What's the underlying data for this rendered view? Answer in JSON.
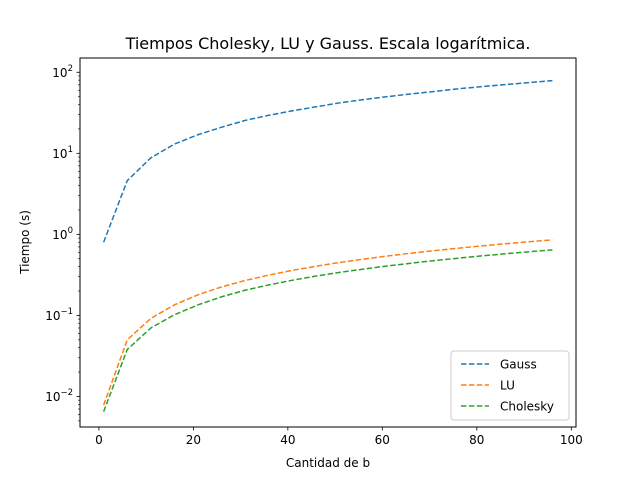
{
  "chart_data": {
    "type": "line",
    "title": "Tiempos Cholesky, LU y Gauss. Escala logarítmica.",
    "xlabel": "Cantidad de b",
    "ylabel": "Tiempo (s)",
    "xlim": [
      -4,
      101
    ],
    "ylim": [
      0.0042,
      150
    ],
    "yscale": "log",
    "grid": false,
    "legend_position": "lower right",
    "line_style": "dashed",
    "x_ticks": [
      0,
      20,
      40,
      60,
      80,
      100
    ],
    "y_ticks": [
      {
        "value": 0.01,
        "base": "10",
        "exp": "−2"
      },
      {
        "value": 0.1,
        "base": "10",
        "exp": "−1"
      },
      {
        "value": 1,
        "base": "10",
        "exp": "0"
      },
      {
        "value": 10,
        "base": "10",
        "exp": "1"
      },
      {
        "value": 100,
        "base": "10",
        "exp": "2"
      }
    ],
    "x": [
      1,
      6,
      11,
      16,
      21,
      26,
      31,
      36,
      41,
      46,
      51,
      56,
      61,
      66,
      71,
      76,
      81,
      86,
      91,
      96
    ],
    "series": [
      {
        "name": "Gauss",
        "color": "#1f77b4",
        "values": [
          0.8,
          4.6,
          8.8,
          13.0,
          17.0,
          21.0,
          25.5,
          29.5,
          33.5,
          37.5,
          42.0,
          46.0,
          50.0,
          54.0,
          58.0,
          62.5,
          66.5,
          70.5,
          74.5,
          79.0
        ]
      },
      {
        "name": "LU",
        "color": "#ff7f0e",
        "values": [
          0.0078,
          0.05,
          0.092,
          0.135,
          0.18,
          0.225,
          0.27,
          0.315,
          0.36,
          0.405,
          0.45,
          0.495,
          0.54,
          0.585,
          0.63,
          0.675,
          0.72,
          0.765,
          0.81,
          0.855
        ]
      },
      {
        "name": "Cholesky",
        "color": "#2ca02c",
        "values": [
          0.0065,
          0.038,
          0.07,
          0.102,
          0.135,
          0.17,
          0.205,
          0.238,
          0.272,
          0.306,
          0.34,
          0.373,
          0.407,
          0.44,
          0.475,
          0.508,
          0.542,
          0.576,
          0.61,
          0.644
        ]
      }
    ]
  }
}
